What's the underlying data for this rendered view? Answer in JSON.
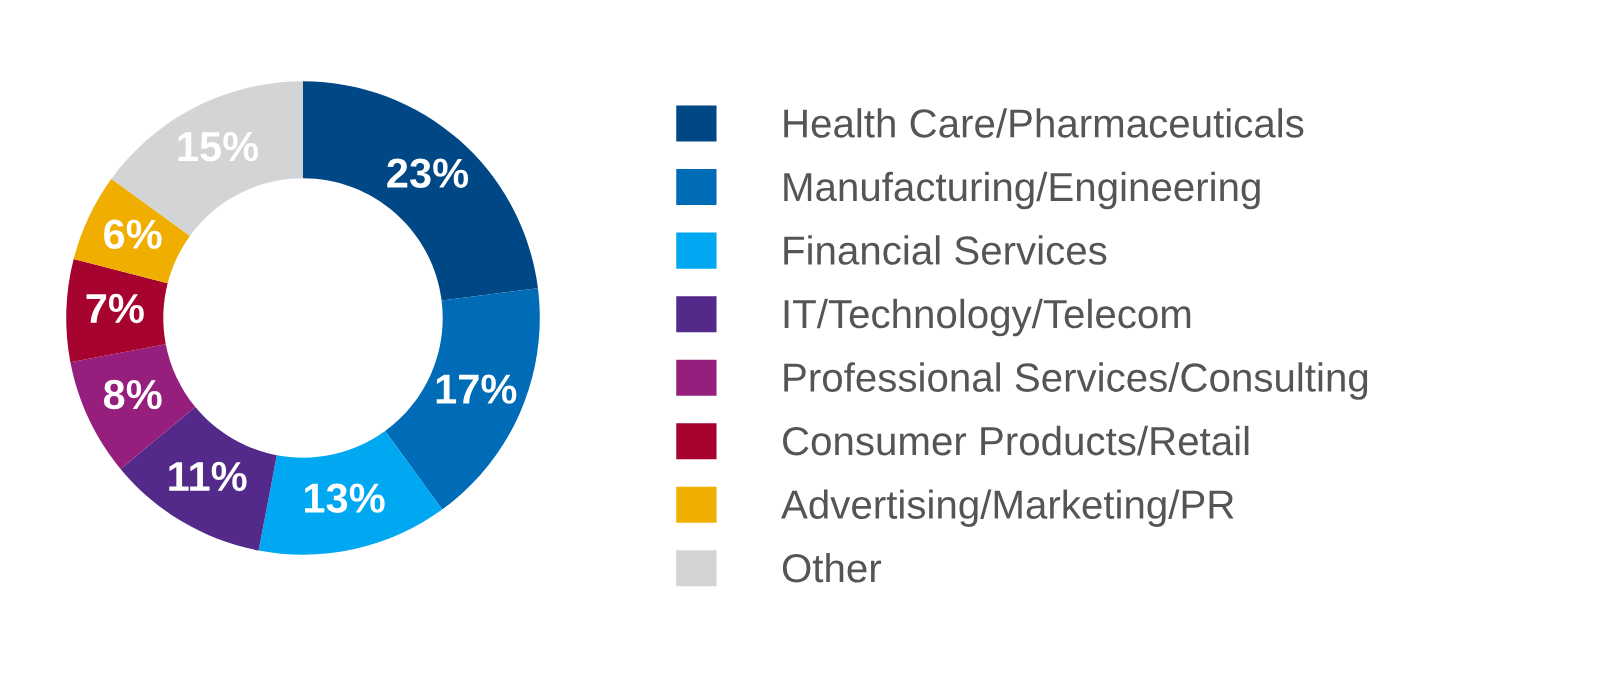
{
  "chart_data": {
    "type": "donut",
    "categories": [
      "Health Care/Pharmaceuticals",
      "Manufacturing/Engineering",
      "Financial Services",
      "IT/Technology/Telecom",
      "Professional Services/Consulting",
      "Consumer Products/Retail",
      "Advertising/Marketing/PR",
      "Other"
    ],
    "values": [
      23,
      17,
      13,
      11,
      8,
      7,
      6,
      15
    ],
    "colors": [
      "#004785",
      "#006bb6",
      "#00a8f2",
      "#532a8a",
      "#961e7d",
      "#a6032f",
      "#f0ae00",
      "#d3d4d6"
    ],
    "value_labels": [
      "23%",
      "17%",
      "13%",
      "11%",
      "8%",
      "7%",
      "6%",
      "15%"
    ],
    "legend": "right"
  }
}
